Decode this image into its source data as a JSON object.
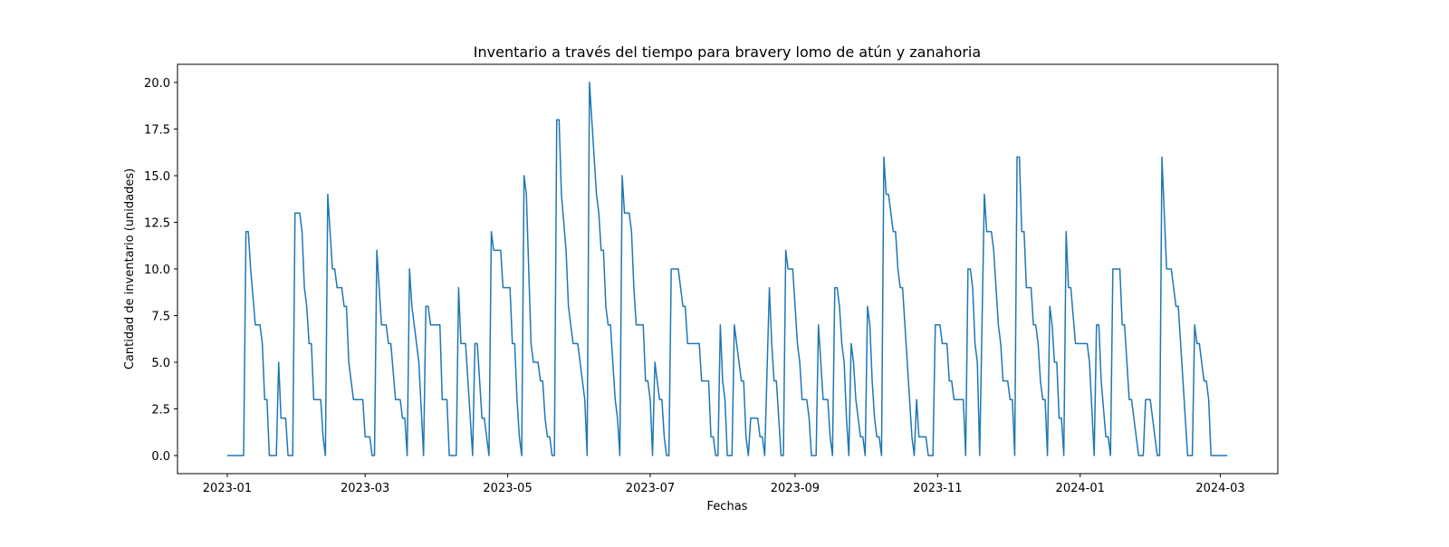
{
  "chart_data": {
    "type": "line",
    "title": "Inventario a través del tiempo para bravery lomo de atún y zanahoria",
    "x_label": "Fechas",
    "y_label": "Cantidad de inventario (unidades)",
    "xlim": [
      -21.3,
      449.6
    ],
    "ylim": [
      -0.97,
      20.97
    ],
    "xticks": [
      {
        "value": 0,
        "label": "2023-01"
      },
      {
        "value": 59,
        "label": "2023-03"
      },
      {
        "value": 120,
        "label": "2023-05"
      },
      {
        "value": 181,
        "label": "2023-07"
      },
      {
        "value": 243,
        "label": "2023-09"
      },
      {
        "value": 304,
        "label": "2023-11"
      },
      {
        "value": 365,
        "label": "2024-01"
      },
      {
        "value": 425,
        "label": "2024-03"
      }
    ],
    "yticks": [
      {
        "value": 0,
        "label": "0.0"
      },
      {
        "value": 2.5,
        "label": "2.5"
      },
      {
        "value": 5,
        "label": "5.0"
      },
      {
        "value": 7.5,
        "label": "7.5"
      },
      {
        "value": 10,
        "label": "10.0"
      },
      {
        "value": 12.5,
        "label": "12.5"
      },
      {
        "value": 15,
        "label": "15.0"
      },
      {
        "value": 17.5,
        "label": "17.5"
      },
      {
        "value": 20,
        "label": "20.0"
      }
    ],
    "x": [
      0,
      7,
      8,
      9,
      10,
      12,
      14,
      15,
      16,
      17,
      18,
      21,
      22,
      23,
      25,
      26,
      28,
      29,
      31,
      32,
      33,
      34,
      35,
      36,
      37,
      40,
      41,
      42,
      43,
      45,
      46,
      47,
      49,
      50,
      51,
      52,
      54,
      58,
      59,
      61,
      62,
      63,
      64,
      66,
      68,
      69,
      70,
      72,
      74,
      75,
      76,
      77,
      78,
      79,
      82,
      84,
      85,
      86,
      87,
      91,
      92,
      94,
      95,
      98,
      99,
      100,
      102,
      105,
      106,
      107,
      109,
      110,
      112,
      113,
      114,
      117,
      118,
      121,
      122,
      123,
      124,
      125,
      126,
      127,
      128,
      129,
      130,
      131,
      133,
      134,
      135,
      136,
      137,
      138,
      139,
      140,
      141,
      142,
      143,
      145,
      146,
      148,
      150,
      153,
      154,
      155,
      157,
      158,
      159,
      160,
      161,
      162,
      163,
      164,
      166,
      167,
      168,
      169,
      170,
      172,
      173,
      174,
      175,
      178,
      179,
      180,
      181,
      182,
      183,
      184,
      185,
      186,
      187,
      188,
      189,
      190,
      193,
      194,
      195,
      196,
      197,
      202,
      203,
      206,
      207,
      208,
      209,
      210,
      211,
      212,
      213,
      214,
      216,
      217,
      218,
      220,
      221,
      222,
      223,
      224,
      227,
      228,
      229,
      230,
      232,
      233,
      234,
      235,
      236,
      237,
      238,
      239,
      240,
      242,
      244,
      245,
      246,
      248,
      249,
      250,
      252,
      253,
      254,
      255,
      257,
      258,
      259,
      260,
      261,
      262,
      263,
      264,
      265,
      266,
      267,
      268,
      269,
      271,
      272,
      273,
      274,
      275,
      276,
      277,
      278,
      279,
      280,
      281,
      282,
      283,
      285,
      286,
      287,
      288,
      289,
      291,
      293,
      294,
      295,
      296,
      299,
      300,
      302,
      303,
      305,
      306,
      308,
      309,
      310,
      311,
      315,
      316,
      317,
      318,
      319,
      320,
      321,
      322,
      324,
      325,
      327,
      328,
      329,
      330,
      331,
      332,
      334,
      335,
      336,
      337,
      338,
      339,
      340,
      341,
      342,
      344,
      345,
      346,
      347,
      348,
      349,
      350,
      351,
      352,
      353,
      354,
      355,
      356,
      357,
      358,
      359,
      360,
      361,
      363,
      368,
      369,
      371,
      372,
      373,
      374,
      376,
      377,
      378,
      379,
      382,
      383,
      384,
      386,
      387,
      389,
      390,
      392,
      393,
      395,
      397,
      398,
      399,
      400,
      402,
      404,
      406,
      407,
      408,
      411,
      413,
      414,
      415,
      416,
      418,
      419,
      420,
      421,
      428
    ],
    "series": [
      {
        "color": "#1f77b4",
        "values": [
          0,
          0,
          12,
          12,
          10,
          7,
          7,
          6,
          3,
          3,
          0,
          0,
          5,
          2,
          2,
          0,
          0,
          13,
          13,
          12,
          9,
          8,
          6,
          6,
          3,
          3,
          1,
          0,
          14,
          10,
          10,
          9,
          9,
          8,
          8,
          5,
          3,
          3,
          1,
          1,
          0,
          0,
          11,
          7,
          7,
          6,
          6,
          3,
          3,
          2,
          2,
          0,
          10,
          8,
          5,
          0,
          8,
          8,
          7,
          7,
          3,
          3,
          0,
          0,
          9,
          6,
          6,
          0,
          6,
          6,
          2,
          2,
          0,
          12,
          11,
          11,
          9,
          9,
          6,
          6,
          3,
          1,
          0,
          15,
          14,
          10,
          6,
          5,
          5,
          4,
          4,
          2,
          1,
          1,
          0,
          0,
          18,
          18,
          14,
          11,
          8,
          6,
          6,
          3,
          0,
          20,
          16,
          14,
          13,
          11,
          11,
          8,
          7,
          7,
          3,
          2,
          0,
          15,
          13,
          13,
          12,
          9,
          7,
          7,
          4,
          4,
          3,
          0,
          5,
          4,
          3,
          3,
          1,
          0,
          0,
          10,
          10,
          9,
          8,
          8,
          6,
          6,
          4,
          4,
          1,
          1,
          0,
          0,
          7,
          4,
          3,
          0,
          0,
          7,
          6,
          4,
          4,
          1,
          0,
          2,
          2,
          1,
          1,
          0,
          9,
          6,
          4,
          4,
          2,
          0,
          0,
          11,
          10,
          10,
          6,
          5,
          3,
          3,
          2,
          0,
          0,
          7,
          5,
          3,
          3,
          1,
          0,
          9,
          9,
          8,
          6,
          5,
          2,
          0,
          6,
          5,
          3,
          1,
          1,
          0,
          8,
          7,
          4,
          2,
          1,
          1,
          0,
          16,
          14,
          14,
          12,
          12,
          10,
          9,
          9,
          5,
          1,
          0,
          3,
          1,
          1,
          0,
          0,
          7,
          7,
          6,
          6,
          4,
          4,
          3,
          3,
          0,
          10,
          10,
          9,
          6,
          5,
          0,
          14,
          12,
          12,
          11,
          9,
          7,
          6,
          4,
          4,
          3,
          3,
          0,
          16,
          16,
          12,
          12,
          9,
          9,
          7,
          7,
          6,
          4,
          3,
          3,
          0,
          8,
          7,
          5,
          5,
          2,
          2,
          0,
          12,
          9,
          9,
          6,
          6,
          5,
          0,
          7,
          7,
          4,
          1,
          1,
          0,
          10,
          10,
          7,
          7,
          3,
          3,
          1,
          0,
          0,
          3,
          3,
          1,
          0,
          0,
          16,
          10,
          10,
          8,
          8,
          6,
          0,
          0,
          7,
          6,
          6,
          4,
          4,
          3,
          0,
          0
        ]
      }
    ]
  }
}
